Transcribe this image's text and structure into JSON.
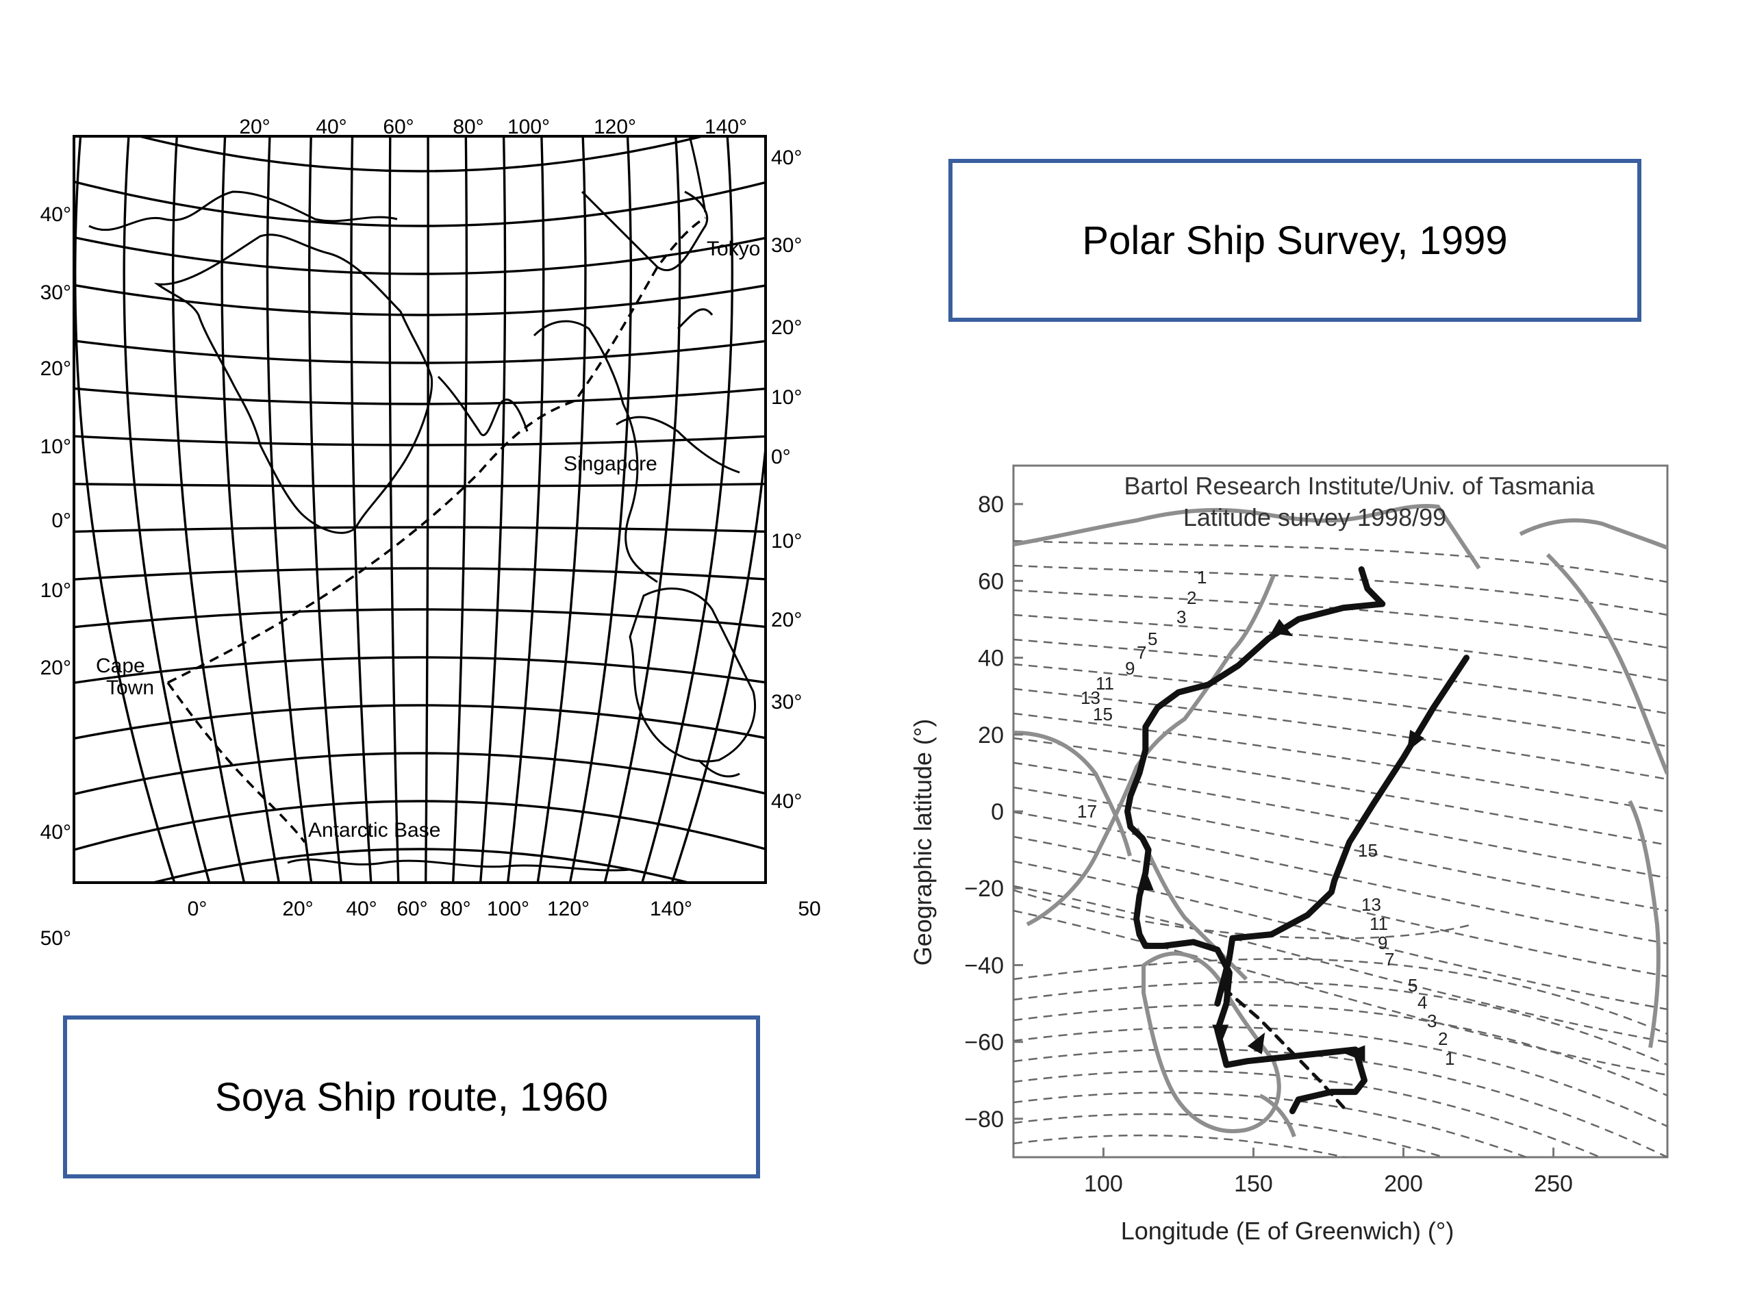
{
  "soya_map": {
    "top_lon_labels": [
      "20°",
      "40°",
      "60°",
      "80°",
      "100°",
      "120°",
      "140°"
    ],
    "bottom_lon_labels": [
      "0°",
      "20°",
      "40°",
      "60°",
      "80°",
      "100°",
      "120°",
      "140°",
      "50°"
    ],
    "left_lat_labels": [
      "40°",
      "30°",
      "20°",
      "10°",
      "0°",
      "10°",
      "20°",
      "40°",
      "50°"
    ],
    "right_lat_labels": [
      "40°",
      "30°",
      "20°",
      "10°",
      "0°",
      "10°",
      "20°",
      "30°",
      "40°"
    ],
    "places": {
      "tokyo": "Tokyo",
      "singapore": "Singapore",
      "cape_town_1": "Cape",
      "cape_town_2": "Town",
      "antarctic_base": "Antarctic Base"
    }
  },
  "soya_caption": "Soya Ship route, 1960",
  "polar_caption": "Polar Ship Survey, 1999",
  "survey_chart": {
    "title_line1": "Bartol Research Institute/Univ. of Tasmania",
    "title_line2": "Latitude survey 1998/99",
    "xlabel": "Longitude (E of Greenwich) (°)",
    "ylabel": "Geographic  latitude (°)",
    "x_ticks": [
      "100",
      "150",
      "200",
      "250"
    ],
    "y_ticks": [
      "80",
      "60",
      "40",
      "20",
      "0",
      "−20",
      "−40",
      "−60",
      "−80"
    ],
    "contour_labels_left": [
      "1",
      "2",
      "3",
      "5",
      "7",
      "9",
      "11",
      "13",
      "15",
      "17"
    ],
    "contour_labels_right": [
      "15",
      "13",
      "11",
      "9",
      "7",
      "5",
      "4",
      "3",
      "2",
      "1"
    ]
  },
  "chart_data": {
    "type": "line",
    "xlim": [
      70,
      288
    ],
    "ylim": [
      -90,
      90
    ],
    "grid": false,
    "series": [
      {
        "style": "solid",
        "x": [
          186,
          188,
          193,
          180,
          165,
          155,
          145,
          135,
          125,
          118,
          114,
          114,
          112,
          109,
          108,
          109,
          113,
          115,
          114,
          112,
          111,
          112,
          114,
          120,
          130,
          138,
          142,
          141,
          138,
          141,
          148,
          160,
          172,
          184,
          187,
          184,
          176,
          165,
          163
        ],
        "y": [
          63,
          58,
          54,
          53,
          50,
          45,
          38,
          33,
          31,
          27,
          22,
          16,
          10,
          4,
          0,
          -4,
          -7,
          -10,
          -16,
          -22,
          -28,
          -32,
          -35,
          -35,
          -34,
          -36,
          -42,
          -50,
          -57,
          -66,
          -65,
          -64,
          -63,
          -62,
          -70,
          -73,
          -73,
          -75,
          -78
        ]
      },
      {
        "style": "solid",
        "x": [
          221,
          210,
          200,
          190,
          182,
          177,
          176,
          168,
          156,
          143,
          142,
          140,
          138
        ],
        "y": [
          40,
          27,
          14,
          2,
          -8,
          -18,
          -21,
          -27,
          -32,
          -33,
          -38,
          -44,
          -50
        ]
      },
      {
        "style": "dashed",
        "x": [
          140,
          152,
          162,
          172,
          180
        ],
        "y": [
          -46,
          -54,
          -62,
          -70,
          -77
        ]
      }
    ]
  }
}
